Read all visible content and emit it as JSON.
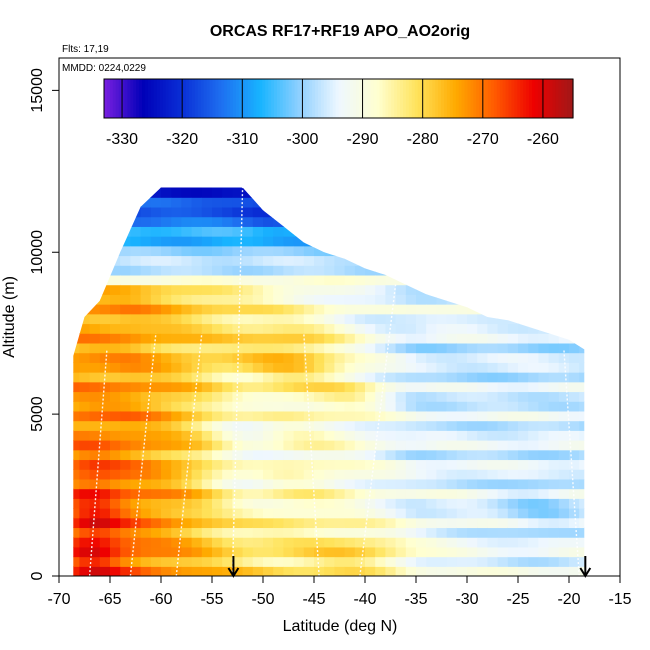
{
  "chart_data": {
    "type": "heatmap",
    "title": "ORCAS RF17+RF19 APO_AO2orig",
    "notes": [
      "Flts: 17,19",
      "MMDD: 0224,0229"
    ],
    "xlabel": "Latitude (deg N)",
    "ylabel": "Altitude (m)",
    "xlim": [
      -70,
      -15
    ],
    "ylim": [
      0,
      16000
    ],
    "x_ticks": [
      -70,
      -65,
      -60,
      -55,
      -50,
      -45,
      -40,
      -35,
      -30,
      -25,
      -20,
      -15
    ],
    "y_ticks": [
      0,
      5000,
      10000,
      15000
    ],
    "grid": false,
    "colorbar": {
      "min": -333,
      "max": -255,
      "ticks": [
        -330,
        -320,
        -310,
        -300,
        -290,
        -280,
        -270,
        -260
      ],
      "colors": [
        "#7a1fe0",
        "#0000b8",
        "#0a2fd6",
        "#1e6ff0",
        "#18b4ff",
        "#8fd0ff",
        "#eef7ff",
        "#ffffd0",
        "#ffe35c",
        "#ffaa00",
        "#ff5a00",
        "#ee0000",
        "#a01818"
      ],
      "placement": "top-inside"
    },
    "coverage": {
      "lat_edges": [
        -68.6,
        -67.5,
        -66,
        -64,
        -62,
        -60,
        -58,
        -56,
        -54,
        -52,
        -50,
        -48,
        -46,
        -44,
        -42,
        -40,
        -38,
        -36,
        -34,
        -32,
        -30,
        -28,
        -26,
        -24,
        -22,
        -20,
        -18.5
      ],
      "top_alt": [
        6800,
        8000,
        8500,
        10000,
        11400,
        12000,
        12000,
        12000,
        12000,
        12000,
        11300,
        10800,
        10300,
        10000,
        9800,
        9500,
        9300,
        9000,
        8700,
        8500,
        8300,
        8000,
        7900,
        7700,
        7500,
        7300,
        7000
      ]
    },
    "profiles": [
      {
        "lat": [
          -67,
          -65.3
        ],
        "alt": [
          0,
          7000
        ]
      },
      {
        "lat": [
          -63,
          -60.5
        ],
        "alt": [
          0,
          7500
        ]
      },
      {
        "lat": [
          -58.5,
          -56
        ],
        "alt": [
          0,
          7500
        ]
      },
      {
        "lat": [
          -53,
          -52
        ],
        "alt": [
          0,
          12000
        ]
      },
      {
        "lat": [
          -44.5,
          -46
        ],
        "alt": [
          0,
          7500
        ]
      },
      {
        "lat": [
          -40.5,
          -37
        ],
        "alt": [
          0,
          9000
        ]
      },
      {
        "lat": [
          -19,
          -20.5
        ],
        "alt": [
          0,
          7000
        ]
      }
    ],
    "markers": [
      {
        "type": "arrow-down",
        "lat": -52.9
      },
      {
        "type": "arrow-down",
        "lat": -18.4
      }
    ]
  }
}
